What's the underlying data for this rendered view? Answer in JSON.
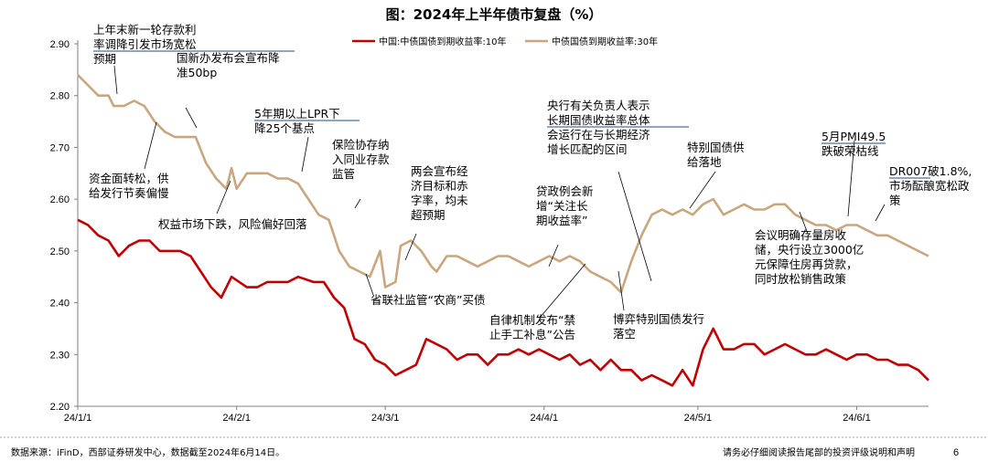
{
  "chart_data": {
    "type": "line",
    "title": "图：2024年上半年债市复盘（%）",
    "xlabel": "",
    "ylabel": "",
    "ylim": [
      2.2,
      2.9
    ],
    "yticks": [
      "2.90",
      "2.80",
      "2.70",
      "2.60",
      "2.50",
      "2.40",
      "2.30",
      "2.20"
    ],
    "xticks": [
      "24/1/1",
      "24/2/1",
      "24/3/1",
      "24/4/1",
      "24/5/1",
      "24/6/1"
    ],
    "x_range_days": [
      0,
      166
    ],
    "series": [
      {
        "name": "中国:中债国债到期收益率:10年",
        "color": "#C00000",
        "x": [
          0,
          2,
          4,
          6,
          8,
          10,
          12,
          14,
          16,
          18,
          20,
          22,
          24,
          26,
          28,
          30,
          33,
          35,
          37,
          39,
          41,
          43,
          46,
          48,
          50,
          52,
          54,
          56,
          58,
          60,
          62,
          64,
          66,
          68,
          70,
          72,
          74,
          76,
          78,
          80,
          82,
          84,
          86,
          88,
          90,
          92,
          94,
          96,
          98,
          100,
          102,
          104,
          106,
          108,
          110,
          112,
          114,
          116,
          118,
          120,
          122,
          124,
          126,
          128,
          130,
          132,
          134,
          136,
          138,
          140,
          142,
          144,
          146,
          148,
          150,
          152,
          154,
          156,
          158,
          160,
          162,
          164,
          166
        ],
        "values": [
          2.56,
          2.55,
          2.53,
          2.52,
          2.49,
          2.51,
          2.52,
          2.52,
          2.5,
          2.5,
          2.5,
          2.49,
          2.46,
          2.43,
          2.41,
          2.45,
          2.43,
          2.43,
          2.44,
          2.44,
          2.44,
          2.45,
          2.44,
          2.44,
          2.41,
          2.39,
          2.33,
          2.32,
          2.29,
          2.28,
          2.26,
          2.27,
          2.28,
          2.33,
          2.32,
          2.31,
          2.29,
          2.3,
          2.3,
          2.28,
          2.3,
          2.3,
          2.31,
          2.3,
          2.31,
          2.3,
          2.29,
          2.3,
          2.28,
          2.29,
          2.27,
          2.29,
          2.27,
          2.27,
          2.25,
          2.26,
          2.25,
          2.24,
          2.27,
          2.24,
          2.31,
          2.35,
          2.31,
          2.31,
          2.32,
          2.32,
          2.3,
          2.31,
          2.32,
          2.31,
          2.3,
          2.3,
          2.31,
          2.3,
          2.29,
          2.3,
          2.3,
          2.29,
          2.29,
          2.28,
          2.28,
          2.27,
          2.25
        ]
      },
      {
        "name": "中债国债到期收益率:30年",
        "color": "#C8A77E",
        "x": [
          0,
          2,
          4,
          6,
          7,
          9,
          11,
          13,
          15,
          17,
          19,
          21,
          23,
          25,
          27,
          29,
          30,
          31,
          33,
          35,
          37,
          39,
          41,
          43,
          45,
          47,
          49,
          51,
          53,
          55,
          57,
          59,
          60,
          62,
          63,
          65,
          67,
          69,
          70,
          72,
          74,
          76,
          78,
          80,
          82,
          84,
          86,
          88,
          90,
          92,
          94,
          96,
          98,
          100,
          102,
          104,
          106,
          108,
          110,
          112,
          114,
          116,
          118,
          120,
          122,
          124,
          126,
          128,
          130,
          132,
          134,
          136,
          138,
          140,
          142,
          144,
          146,
          148,
          150,
          152,
          154,
          156,
          158,
          160,
          162,
          164,
          166
        ],
        "values": [
          2.84,
          2.82,
          2.8,
          2.8,
          2.78,
          2.78,
          2.79,
          2.78,
          2.75,
          2.73,
          2.72,
          2.72,
          2.72,
          2.67,
          2.64,
          2.62,
          2.66,
          2.62,
          2.65,
          2.65,
          2.65,
          2.64,
          2.64,
          2.63,
          2.6,
          2.57,
          2.56,
          2.5,
          2.47,
          2.46,
          2.45,
          2.5,
          2.43,
          2.44,
          2.51,
          2.52,
          2.5,
          2.47,
          2.46,
          2.49,
          2.49,
          2.48,
          2.47,
          2.48,
          2.49,
          2.49,
          2.48,
          2.47,
          2.48,
          2.49,
          2.48,
          2.49,
          2.48,
          2.46,
          2.45,
          2.44,
          2.42,
          2.48,
          2.53,
          2.57,
          2.58,
          2.57,
          2.58,
          2.57,
          2.59,
          2.6,
          2.57,
          2.58,
          2.59,
          2.58,
          2.58,
          2.59,
          2.59,
          2.57,
          2.56,
          2.55,
          2.55,
          2.54,
          2.55,
          2.55,
          2.54,
          2.53,
          2.53,
          2.52,
          2.51,
          2.5,
          2.49
        ]
      }
    ],
    "legend": "top",
    "annotations": [
      {
        "lines": [
          "上年末新一轮存款利",
          "率调降引发市场宽松",
          "预期"
        ]
      },
      {
        "lines": [
          "国新办发布会宣布降",
          "准50bp"
        ]
      },
      {
        "lines": [
          "资金面转松，供",
          "给发行节奏偏慢"
        ]
      },
      {
        "lines": [
          "权益市场下跌，风险偏好回落"
        ]
      },
      {
        "lines": [
          "5年期以上LPR下",
          "降25个基点"
        ]
      },
      {
        "lines": [
          "保险协存纳",
          "入同业存款",
          "监管"
        ]
      },
      {
        "lines": [
          "两会宣布经",
          "济目标和赤",
          "字率，均未",
          "超预期"
        ]
      },
      {
        "lines": [
          "省联社监管“农商”买债"
        ]
      },
      {
        "lines": [
          "贷政例会新",
          "增“关注长",
          "期收益率”"
        ]
      },
      {
        "lines": [
          "自律机制发布“禁",
          "止手工补息”公告"
        ]
      },
      {
        "lines": [
          "央行有关负责人表示",
          "长期国债收益率总体",
          "会运行在与长期经济",
          "增长匹配的区间"
        ]
      },
      {
        "lines": [
          "博弈特别国债发行",
          "落空"
        ]
      },
      {
        "lines": [
          "特别国债供",
          "给落地"
        ]
      },
      {
        "lines": [
          "5月PMI49.5",
          "跌破荣枯线"
        ]
      },
      {
        "lines": [
          "DR007破1.8%,",
          "市场酝酿宽松政",
          "策"
        ]
      },
      {
        "lines": [
          "会议明确存量房收",
          "储，央行设立3000亿",
          "元保障住房再贷款，",
          "同时放松销售政策"
        ]
      }
    ]
  },
  "footer": {
    "source": "数据来源：iFinD，西部证券研发中心，数据截至2024年6月14日。",
    "disclaimer": "请务必仔细阅读报告尾部的投资评级说明和声明",
    "page": "6"
  },
  "colors": {
    "red": "#C00000",
    "tan": "#C8A77E",
    "link": "#1F4E79"
  }
}
